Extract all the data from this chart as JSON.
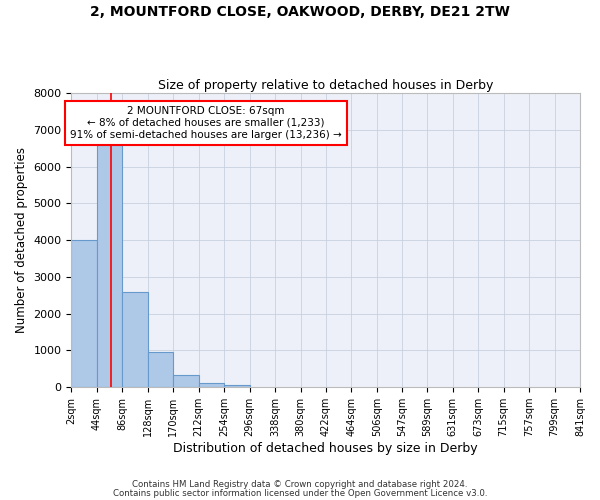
{
  "title": "2, MOUNTFORD CLOSE, OAKWOOD, DERBY, DE21 2TW",
  "subtitle": "Size of property relative to detached houses in Derby",
  "xlabel": "Distribution of detached houses by size in Derby",
  "ylabel": "Number of detached properties",
  "bin_edges": [
    2,
    44,
    86,
    128,
    170,
    212,
    254,
    296,
    338,
    380,
    422,
    464,
    506,
    547,
    589,
    631,
    673,
    715,
    757,
    799,
    841
  ],
  "bar_heights": [
    4000,
    6600,
    2600,
    950,
    330,
    120,
    60,
    0,
    0,
    0,
    0,
    0,
    0,
    0,
    0,
    0,
    0,
    0,
    0,
    0
  ],
  "bar_color": "#aec8e8",
  "bar_edgecolor": "#6699cc",
  "property_line_x": 67,
  "property_line_color": "red",
  "annotation_line1": "2 MOUNTFORD CLOSE: 67sqm",
  "annotation_line2": "← 8% of detached houses are smaller (1,233)",
  "annotation_line3": "91% of semi-detached houses are larger (13,236) →",
  "annotation_box_color": "white",
  "annotation_box_edgecolor": "red",
  "ylim": [
    0,
    8000
  ],
  "yticks": [
    0,
    1000,
    2000,
    3000,
    4000,
    5000,
    6000,
    7000,
    8000
  ],
  "tick_labels": [
    "2sqm",
    "44sqm",
    "86sqm",
    "128sqm",
    "170sqm",
    "212sqm",
    "254sqm",
    "296sqm",
    "338sqm",
    "380sqm",
    "422sqm",
    "464sqm",
    "506sqm",
    "547sqm",
    "589sqm",
    "631sqm",
    "673sqm",
    "715sqm",
    "757sqm",
    "799sqm",
    "841sqm"
  ],
  "footer_line1": "Contains HM Land Registry data © Crown copyright and database right 2024.",
  "footer_line2": "Contains public sector information licensed under the Open Government Licence v3.0.",
  "grid_color": "#c8d0e0",
  "bg_color": "#edf0f8"
}
